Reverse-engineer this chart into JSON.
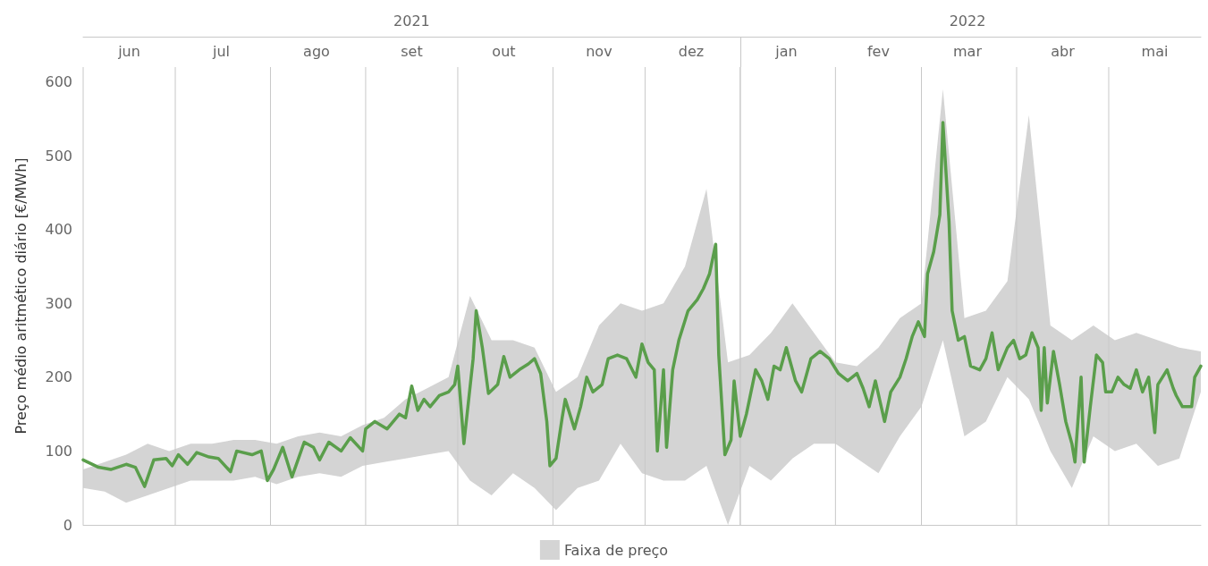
{
  "chart_data": {
    "type": "line",
    "ylabel": "Preço médio aritmético diário [€/MWh]",
    "xlim": [
      "2021-06-01",
      "2022-05-31"
    ],
    "ylim": [
      0,
      620
    ],
    "yticks": [
      0,
      100,
      200,
      300,
      400,
      500,
      600
    ],
    "xticks": [
      {
        "value": "2021-06-01",
        "label": null
      },
      {
        "value": "2021-06-16",
        "label": "jun"
      },
      {
        "value": "2021-07-01",
        "label": null
      },
      {
        "value": "2021-07-16",
        "label": "jul"
      },
      {
        "value": "2021-08-01",
        "label": null
      },
      {
        "value": "2021-08-16",
        "label": "ago"
      },
      {
        "value": "2021-09-01",
        "label": null
      },
      {
        "value": "2021-09-16",
        "label": "set"
      },
      {
        "value": "2021-10-01",
        "label": null
      },
      {
        "value": "2021-10-16",
        "label": "out"
      },
      {
        "value": "2021-11-01",
        "label": null
      },
      {
        "value": "2021-11-16",
        "label": "nov"
      },
      {
        "value": "2021-12-01",
        "label": null
      },
      {
        "value": "2021-12-16",
        "label": "dez"
      },
      {
        "value": "2022-01-01",
        "label": null
      },
      {
        "value": "2022-01-16",
        "label": "jan"
      },
      {
        "value": "2022-02-01",
        "label": null
      },
      {
        "value": "2022-02-15",
        "label": "fev"
      },
      {
        "value": "2022-03-01",
        "label": null
      },
      {
        "value": "2022-03-16",
        "label": "mar"
      },
      {
        "value": "2022-04-01",
        "label": null
      },
      {
        "value": "2022-04-16",
        "label": "abr"
      },
      {
        "value": "2022-05-01",
        "label": null
      },
      {
        "value": "2022-05-16",
        "label": "mai"
      }
    ],
    "x2lim": [
      "2021-06-01",
      "2022-05-31"
    ],
    "x2ticks": [
      {
        "value": "2021-09-16",
        "label": "2021"
      },
      {
        "value": "2022-01-01",
        "label": null
      },
      {
        "value": "2022-03-16",
        "label": "2022"
      }
    ],
    "grid": "x",
    "legend": "bottom",
    "series": [
      {
        "type": "area",
        "name": "Faixa de preço",
        "color": "#d4d4d4",
        "x": [
          "2021-06-01",
          "2021-06-08",
          "2021-06-15",
          "2021-06-22",
          "2021-06-29",
          "2021-07-06",
          "2021-07-13",
          "2021-07-20",
          "2021-07-27",
          "2021-08-03",
          "2021-08-10",
          "2021-08-17",
          "2021-08-24",
          "2021-08-31",
          "2021-09-07",
          "2021-09-14",
          "2021-09-21",
          "2021-09-28",
          "2021-10-05",
          "2021-10-12",
          "2021-10-19",
          "2021-10-26",
          "2021-11-02",
          "2021-11-09",
          "2021-11-16",
          "2021-11-23",
          "2021-11-30",
          "2021-12-07",
          "2021-12-14",
          "2021-12-21",
          "2021-12-28",
          "2022-01-04",
          "2022-01-11",
          "2022-01-18",
          "2022-01-25",
          "2022-02-01",
          "2022-02-08",
          "2022-02-15",
          "2022-02-22",
          "2022-03-01",
          "2022-03-08",
          "2022-03-15",
          "2022-03-22",
          "2022-03-29",
          "2022-04-05",
          "2022-04-12",
          "2022-04-19",
          "2022-04-26",
          "2022-05-03",
          "2022-05-10",
          "2022-05-17",
          "2022-05-24",
          "2022-05-31"
        ],
        "values": [
          null,
          null,
          null,
          null,
          null,
          null,
          null,
          null,
          null,
          null,
          null,
          null,
          null,
          null,
          null,
          null,
          null,
          null,
          null,
          null,
          null,
          null,
          null,
          null,
          null,
          null,
          null,
          null,
          null,
          null,
          null,
          null,
          null,
          null,
          null,
          null,
          null,
          null,
          null,
          null,
          null,
          null,
          null,
          null,
          null,
          null,
          null,
          null,
          null,
          null,
          null,
          null,
          null
        ],
        "lower": [
          50,
          45,
          30,
          40,
          50,
          60,
          60,
          60,
          65,
          55,
          65,
          70,
          65,
          80,
          85,
          90,
          95,
          100,
          60,
          40,
          70,
          50,
          20,
          50,
          60,
          110,
          70,
          60,
          60,
          80,
          0,
          80,
          60,
          90,
          110,
          110,
          90,
          70,
          120,
          160,
          250,
          120,
          140,
          200,
          170,
          100,
          50,
          120,
          100,
          110,
          80,
          90,
          180
        ],
        "upper": [
          75,
          85,
          95,
          110,
          100,
          110,
          110,
          115,
          115,
          110,
          120,
          125,
          120,
          135,
          145,
          170,
          185,
          200,
          310,
          250,
          250,
          240,
          180,
          200,
          270,
          300,
          290,
          300,
          350,
          455,
          220,
          230,
          260,
          300,
          260,
          220,
          215,
          240,
          280,
          300,
          590,
          280,
          290,
          330,
          555,
          270,
          250,
          270,
          250,
          260,
          250,
          240,
          235
        ]
      },
      {
        "color": "#5a9e4b",
        "x": [
          "2021-06-01",
          "2021-06-06",
          "2021-06-10",
          "2021-06-15",
          "2021-06-18",
          "2021-06-21",
          "2021-06-24",
          "2021-06-28",
          "2021-06-30",
          "2021-07-02",
          "2021-07-05",
          "2021-07-08",
          "2021-07-12",
          "2021-07-15",
          "2021-07-19",
          "2021-07-21",
          "2021-07-26",
          "2021-07-29",
          "2021-07-31",
          "2021-08-02",
          "2021-08-05",
          "2021-08-08",
          "2021-08-12",
          "2021-08-15",
          "2021-08-17",
          "2021-08-20",
          "2021-08-24",
          "2021-08-27",
          "2021-08-31",
          "2021-09-01",
          "2021-09-04",
          "2021-09-08",
          "2021-09-12",
          "2021-09-14",
          "2021-09-16",
          "2021-09-18",
          "2021-09-20",
          "2021-09-22",
          "2021-09-25",
          "2021-09-28",
          "2021-09-30",
          "2021-10-01",
          "2021-10-03",
          "2021-10-06",
          "2021-10-07",
          "2021-10-09",
          "2021-10-11",
          "2021-10-14",
          "2021-10-16",
          "2021-10-18",
          "2021-10-21",
          "2021-10-24",
          "2021-10-26",
          "2021-10-28",
          "2021-10-30",
          "2021-10-31",
          "2021-11-02",
          "2021-11-04",
          "2021-11-05",
          "2021-11-08",
          "2021-11-10",
          "2021-11-12",
          "2021-11-14",
          "2021-11-17",
          "2021-11-19",
          "2021-11-22",
          "2021-11-25",
          "2021-11-28",
          "2021-11-30",
          "2021-12-02",
          "2021-12-04",
          "2021-12-05",
          "2021-12-07",
          "2021-12-08",
          "2021-12-10",
          "2021-12-12",
          "2021-12-15",
          "2021-12-18",
          "2021-12-20",
          "2021-12-22",
          "2021-12-24",
          "2021-12-25",
          "2021-12-27",
          "2021-12-29",
          "2021-12-30",
          "2022-01-01",
          "2022-01-03",
          "2022-01-06",
          "2022-01-08",
          "2022-01-10",
          "2022-01-12",
          "2022-01-14",
          "2022-01-16",
          "2022-01-19",
          "2022-01-21",
          "2022-01-24",
          "2022-01-27",
          "2022-01-30",
          "2022-02-02",
          "2022-02-05",
          "2022-02-08",
          "2022-02-10",
          "2022-02-12",
          "2022-02-14",
          "2022-02-17",
          "2022-02-19",
          "2022-02-22",
          "2022-02-24",
          "2022-02-26",
          "2022-02-28",
          "2022-03-02",
          "2022-03-03",
          "2022-03-05",
          "2022-03-07",
          "2022-03-08",
          "2022-03-10",
          "2022-03-11",
          "2022-03-13",
          "2022-03-15",
          "2022-03-17",
          "2022-03-20",
          "2022-03-22",
          "2022-03-24",
          "2022-03-26",
          "2022-03-29",
          "2022-03-31",
          "2022-04-02",
          "2022-04-04",
          "2022-04-06",
          "2022-04-08",
          "2022-04-09",
          "2022-04-10",
          "2022-04-11",
          "2022-04-13",
          "2022-04-15",
          "2022-04-17",
          "2022-04-19",
          "2022-04-20",
          "2022-04-22",
          "2022-04-23",
          "2022-04-25",
          "2022-04-27",
          "2022-04-29",
          "2022-04-30",
          "2022-05-02",
          "2022-05-04",
          "2022-05-06",
          "2022-05-08",
          "2022-05-10",
          "2022-05-12",
          "2022-05-14",
          "2022-05-16",
          "2022-05-17",
          "2022-05-20",
          "2022-05-22",
          "2022-05-23",
          "2022-05-25",
          "2022-05-28",
          "2022-05-29",
          "2022-05-31"
        ],
        "values": [
          88,
          78,
          75,
          82,
          78,
          52,
          88,
          90,
          80,
          95,
          82,
          98,
          92,
          90,
          72,
          100,
          95,
          100,
          60,
          75,
          105,
          65,
          112,
          105,
          88,
          112,
          100,
          118,
          100,
          130,
          140,
          130,
          150,
          145,
          188,
          155,
          170,
          160,
          175,
          180,
          190,
          215,
          110,
          225,
          290,
          240,
          178,
          190,
          228,
          200,
          210,
          218,
          225,
          205,
          140,
          80,
          90,
          145,
          170,
          130,
          160,
          200,
          180,
          190,
          225,
          230,
          225,
          200,
          245,
          220,
          210,
          100,
          210,
          105,
          210,
          250,
          290,
          305,
          320,
          340,
          380,
          230,
          95,
          115,
          195,
          120,
          150,
          210,
          195,
          170,
          215,
          210,
          240,
          195,
          180,
          225,
          235,
          225,
          205,
          195,
          205,
          185,
          160,
          195,
          140,
          180,
          200,
          225,
          255,
          275,
          255,
          340,
          370,
          420,
          545,
          410,
          290,
          250,
          255,
          215,
          210,
          225,
          260,
          210,
          240,
          250,
          225,
          230,
          260,
          240,
          155,
          240,
          165,
          235,
          190,
          140,
          110,
          85,
          200,
          85,
          160,
          230,
          220,
          180,
          180,
          200,
          190,
          185,
          210,
          180,
          200,
          125,
          190,
          210,
          185,
          175,
          160,
          160,
          200,
          215
        ]
      }
    ]
  }
}
